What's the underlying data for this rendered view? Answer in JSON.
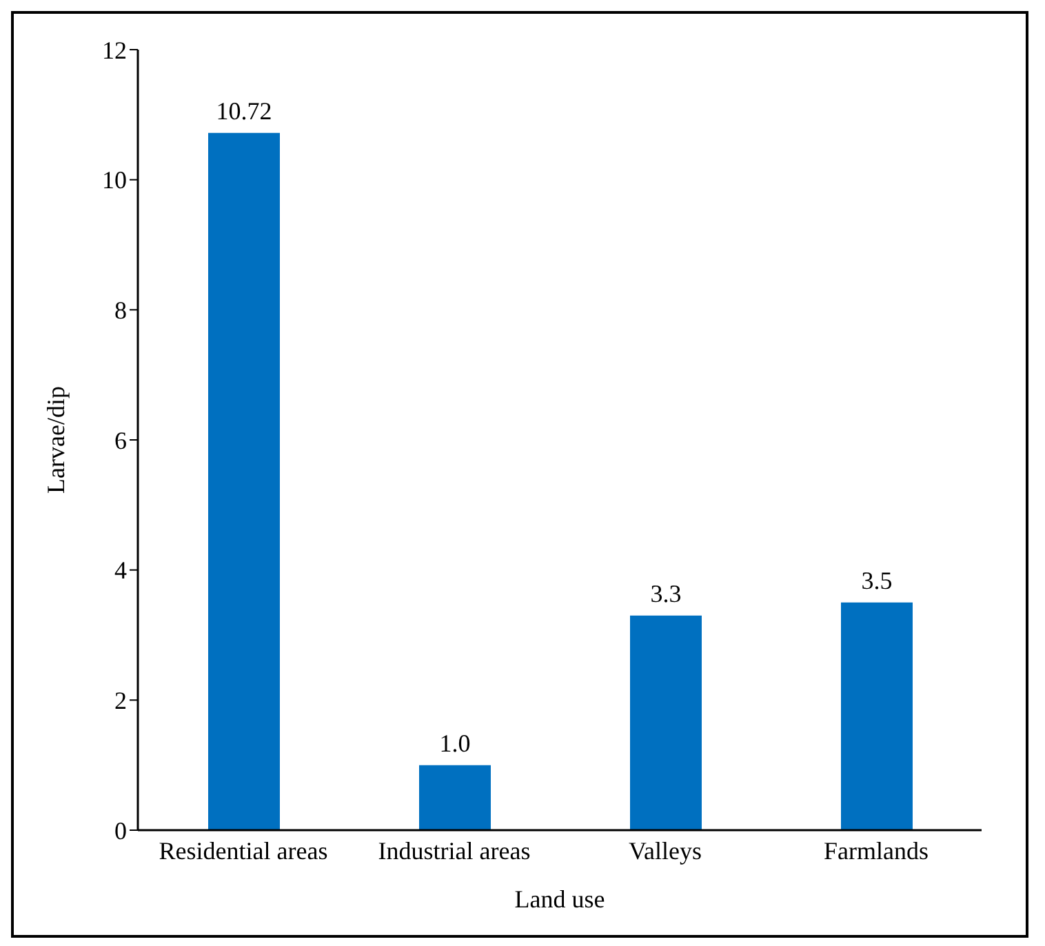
{
  "chart_data": {
    "type": "bar",
    "xlabel": "Land use",
    "ylabel": "Larvae/dip",
    "categories": [
      "Residential areas",
      "Industrial areas",
      "Valleys",
      "Farmlands"
    ],
    "values": [
      10.72,
      1.0,
      3.3,
      3.5
    ],
    "value_labels": [
      "10.72",
      "1.0",
      "3.3",
      "3.5"
    ],
    "color": "#0070c0",
    "ylim": [
      0,
      12
    ],
    "yticks": [
      0,
      2,
      4,
      6,
      8,
      10,
      12
    ],
    "grid": false,
    "legend": false
  }
}
